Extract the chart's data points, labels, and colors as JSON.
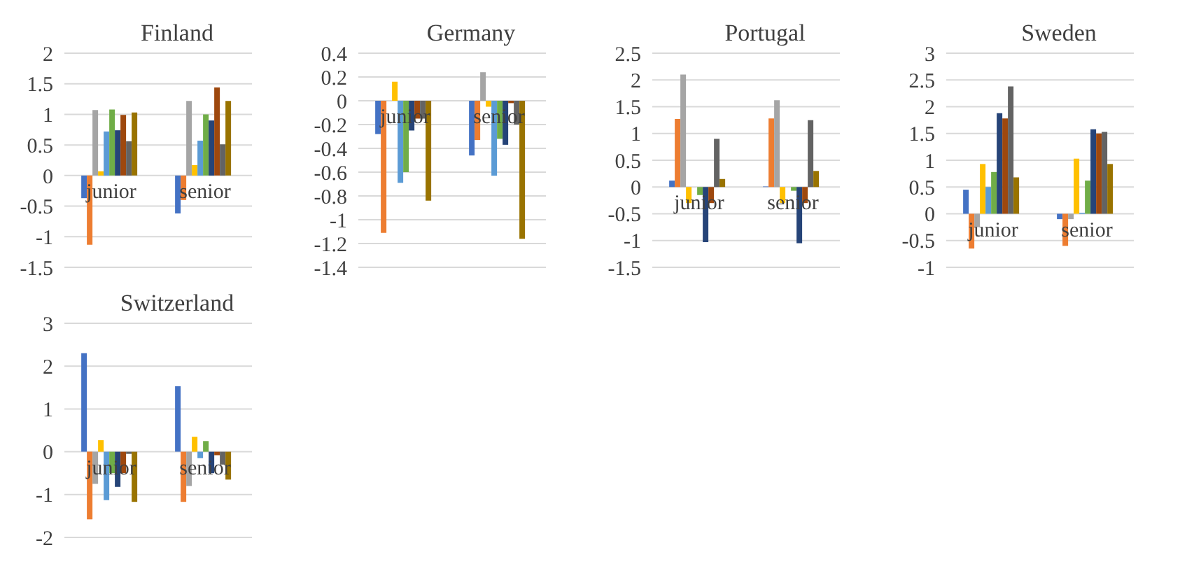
{
  "chart_data": [
    {
      "type": "bar",
      "title": "Finland",
      "categories": [
        "junior",
        "senior"
      ],
      "ylim": [
        -1.5,
        2
      ],
      "yticks": [
        -1.5,
        -1,
        -0.5,
        0,
        0.5,
        1,
        1.5,
        2
      ],
      "grid": "y",
      "legend": false,
      "series": [
        {
          "color": "#4472c4",
          "values": [
            -0.37,
            -0.62
          ]
        },
        {
          "color": "#ed7d31",
          "values": [
            -1.13,
            -0.4
          ]
        },
        {
          "color": "#a5a5a5",
          "values": [
            1.07,
            1.22
          ]
        },
        {
          "color": "#ffc000",
          "values": [
            0.07,
            0.17
          ]
        },
        {
          "color": "#5b9bd5",
          "values": [
            0.72,
            0.57
          ]
        },
        {
          "color": "#70ad47",
          "values": [
            1.08,
            1.0
          ]
        },
        {
          "color": "#264478",
          "values": [
            0.74,
            0.9
          ]
        },
        {
          "color": "#9e480e",
          "values": [
            0.99,
            1.44
          ]
        },
        {
          "color": "#636363",
          "values": [
            0.56,
            0.51
          ]
        },
        {
          "color": "#997300",
          "values": [
            1.03,
            1.22
          ]
        }
      ]
    },
    {
      "type": "bar",
      "title": "Germany",
      "categories": [
        "junior",
        "senior"
      ],
      "ylim": [
        -1.4,
        0.4
      ],
      "yticks": [
        -1.4,
        -1.2,
        -1,
        -0.8,
        -0.6,
        -0.4,
        -0.2,
        0,
        0.2,
        0.4
      ],
      "grid": "y",
      "legend": false,
      "series": [
        {
          "color": "#4472c4",
          "values": [
            -0.28,
            -0.46
          ]
        },
        {
          "color": "#ed7d31",
          "values": [
            -1.11,
            -0.33
          ]
        },
        {
          "color": "#a5a5a5",
          "values": [
            0,
            0.24
          ]
        },
        {
          "color": "#ffc000",
          "values": [
            0.16,
            -0.05
          ]
        },
        {
          "color": "#5b9bd5",
          "values": [
            -0.69,
            -0.63
          ]
        },
        {
          "color": "#70ad47",
          "values": [
            -0.6,
            -0.32
          ]
        },
        {
          "color": "#264478",
          "values": [
            -0.25,
            -0.37
          ]
        },
        {
          "color": "#9e480e",
          "values": [
            -0.15,
            -0.02
          ]
        },
        {
          "color": "#636363",
          "values": [
            -0.15,
            -0.2
          ]
        },
        {
          "color": "#997300",
          "values": [
            -0.84,
            -1.16
          ]
        }
      ]
    },
    {
      "type": "bar",
      "title": "Portugal",
      "categories": [
        "junior",
        "senior"
      ],
      "ylim": [
        -1.5,
        2.5
      ],
      "yticks": [
        -1.5,
        -1,
        -0.5,
        0,
        0.5,
        1,
        1.5,
        2,
        2.5
      ],
      "grid": "y",
      "legend": false,
      "series": [
        {
          "color": "#4472c4",
          "values": [
            0.12,
            0.01
          ]
        },
        {
          "color": "#ed7d31",
          "values": [
            1.27,
            1.28
          ]
        },
        {
          "color": "#a5a5a5",
          "values": [
            2.1,
            1.62
          ]
        },
        {
          "color": "#ffc000",
          "values": [
            -0.3,
            -0.3
          ]
        },
        {
          "color": "#5b9bd5",
          "values": [
            0,
            0
          ]
        },
        {
          "color": "#70ad47",
          "values": [
            -0.15,
            -0.07
          ]
        },
        {
          "color": "#264478",
          "values": [
            -1.03,
            -1.05
          ]
        },
        {
          "color": "#9e480e",
          "values": [
            -0.3,
            -0.3
          ]
        },
        {
          "color": "#636363",
          "values": [
            0.9,
            1.25
          ]
        },
        {
          "color": "#997300",
          "values": [
            0.15,
            0.3
          ]
        }
      ]
    },
    {
      "type": "bar",
      "title": "Sweden",
      "categories": [
        "junior",
        "senior"
      ],
      "ylim": [
        -1,
        3
      ],
      "yticks": [
        -1,
        -0.5,
        0,
        0.5,
        1,
        1.5,
        2,
        2.5,
        3
      ],
      "grid": "y",
      "legend": false,
      "series": [
        {
          "color": "#4472c4",
          "values": [
            0.45,
            -0.1
          ]
        },
        {
          "color": "#ed7d31",
          "values": [
            -0.65,
            -0.6
          ]
        },
        {
          "color": "#a5a5a5",
          "values": [
            -0.25,
            -0.1
          ]
        },
        {
          "color": "#ffc000",
          "values": [
            0.93,
            1.03
          ]
        },
        {
          "color": "#5b9bd5",
          "values": [
            0.5,
            0.02
          ]
        },
        {
          "color": "#70ad47",
          "values": [
            0.78,
            0.62
          ]
        },
        {
          "color": "#264478",
          "values": [
            1.88,
            1.58
          ]
        },
        {
          "color": "#9e480e",
          "values": [
            1.78,
            1.5
          ]
        },
        {
          "color": "#636363",
          "values": [
            2.38,
            1.53
          ]
        },
        {
          "color": "#997300",
          "values": [
            0.68,
            0.93
          ]
        }
      ]
    },
    {
      "type": "bar",
      "title": "Switzerland",
      "categories": [
        "junior",
        "senior"
      ],
      "ylim": [
        -2,
        3
      ],
      "yticks": [
        -2,
        -1,
        0,
        1,
        2,
        3
      ],
      "grid": "y",
      "legend": false,
      "series": [
        {
          "color": "#4472c4",
          "values": [
            2.3,
            1.53
          ]
        },
        {
          "color": "#ed7d31",
          "values": [
            -1.58,
            -1.17
          ]
        },
        {
          "color": "#a5a5a5",
          "values": [
            -0.75,
            -0.8
          ]
        },
        {
          "color": "#ffc000",
          "values": [
            0.27,
            0.35
          ]
        },
        {
          "color": "#5b9bd5",
          "values": [
            -1.13,
            -0.15
          ]
        },
        {
          "color": "#70ad47",
          "values": [
            -0.5,
            0.25
          ]
        },
        {
          "color": "#264478",
          "values": [
            -0.82,
            -0.5
          ]
        },
        {
          "color": "#9e480e",
          "values": [
            -0.5,
            -0.08
          ]
        },
        {
          "color": "#636363",
          "values": [
            -0.05,
            -0.3
          ]
        },
        {
          "color": "#997300",
          "values": [
            -1.17,
            -0.65
          ]
        }
      ]
    }
  ]
}
